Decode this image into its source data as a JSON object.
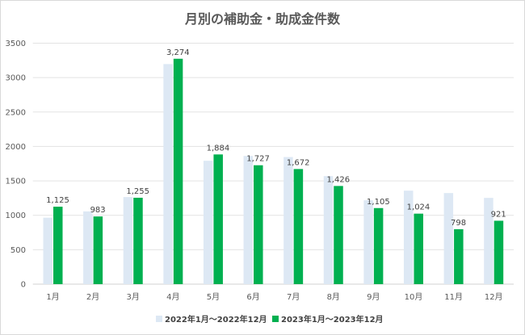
{
  "chart_data": {
    "type": "bar",
    "title": "月別の補助金・助成金件数",
    "categories": [
      "1月",
      "2月",
      "3月",
      "4月",
      "5月",
      "6月",
      "7月",
      "8月",
      "9月",
      "10月",
      "11月",
      "12月"
    ],
    "series": [
      {
        "name": "2022年1月～2022年12月",
        "color": "#dde8f4",
        "values": [
          965,
          1057,
          1265,
          3197,
          1792,
          1862,
          1846,
          1569,
          1218,
          1358,
          1323,
          1253
        ]
      },
      {
        "name": "2023年1月～2023年12月",
        "color": "#00b050",
        "values": [
          1125,
          983,
          1255,
          3274,
          1884,
          1727,
          1672,
          1426,
          1105,
          1024,
          798,
          921
        ],
        "data_labels": [
          "1,125",
          "983",
          "1,255",
          "3,274",
          "1,884",
          "1,727",
          "1,672",
          "1,426",
          "1,105",
          "1,024",
          "798",
          "921"
        ]
      }
    ],
    "yticks": [
      "0",
      "500",
      "1000",
      "1500",
      "2000",
      "2500",
      "3000",
      "3500"
    ],
    "ylim": [
      0,
      3500
    ],
    "grid": true,
    "legend": "bottom"
  }
}
